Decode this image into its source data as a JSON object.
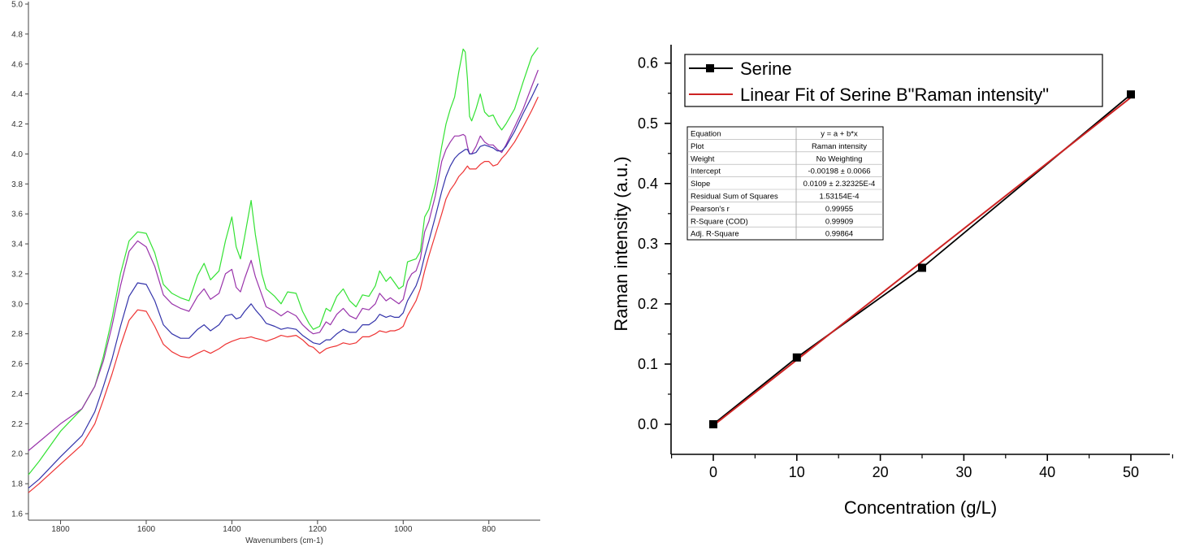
{
  "chart_data": [
    {
      "type": "line",
      "title": "",
      "xlabel": "Wavenumbers (cm-1)",
      "ylabel": "",
      "xlim": [
        1875,
        680
      ],
      "ylim": [
        1.6,
        5.0
      ],
      "x_reversed": true,
      "x_ticks": [
        1800,
        1600,
        1400,
        1200,
        1000,
        800
      ],
      "y_ticks": [
        1.6,
        1.8,
        2.0,
        2.2,
        2.4,
        2.6,
        2.8,
        3.0,
        3.2,
        3.4,
        3.6,
        3.8,
        4.0,
        4.2,
        4.4,
        4.6,
        4.8,
        5.0
      ],
      "x_tick_labels": [
        "1800",
        "1600",
        "1400",
        "1200",
        "1000",
        "800"
      ],
      "y_tick_labels": [
        "1.6",
        "1.8",
        "2.0",
        "2.2",
        "2.4",
        "2.6",
        "2.8",
        "3.0",
        "3.2",
        "3.4",
        "3.6",
        "3.8",
        "4.0",
        "4.2",
        "4.4",
        "4.6",
        "4.8",
        "5.0"
      ],
      "grid": false,
      "series": [
        {
          "color": "#33e233",
          "x": [
            1875,
            1850,
            1800,
            1750,
            1720,
            1700,
            1680,
            1660,
            1640,
            1620,
            1600,
            1580,
            1560,
            1540,
            1520,
            1500,
            1480,
            1465,
            1450,
            1430,
            1415,
            1400,
            1390,
            1380,
            1370,
            1355,
            1345,
            1330,
            1320,
            1300,
            1285,
            1270,
            1250,
            1235,
            1220,
            1210,
            1195,
            1180,
            1170,
            1155,
            1140,
            1125,
            1110,
            1095,
            1080,
            1065,
            1055,
            1040,
            1030,
            1020,
            1010,
            1000,
            990,
            980,
            970,
            960,
            950,
            940,
            925,
            910,
            900,
            890,
            880,
            870,
            860,
            855,
            850,
            845,
            840,
            830,
            820,
            810,
            800,
            790,
            780,
            770,
            760,
            740,
            720,
            700,
            685
          ],
          "y": [
            1.86,
            1.95,
            2.15,
            2.3,
            2.45,
            2.65,
            2.9,
            3.2,
            3.42,
            3.48,
            3.47,
            3.34,
            3.13,
            3.07,
            3.04,
            3.02,
            3.19,
            3.27,
            3.16,
            3.22,
            3.42,
            3.58,
            3.38,
            3.3,
            3.45,
            3.69,
            3.46,
            3.2,
            3.1,
            3.05,
            3.0,
            3.08,
            3.07,
            2.95,
            2.87,
            2.83,
            2.85,
            2.97,
            2.95,
            3.05,
            3.1,
            3.02,
            2.98,
            3.06,
            3.05,
            3.12,
            3.22,
            3.15,
            3.18,
            3.14,
            3.1,
            3.12,
            3.28,
            3.29,
            3.3,
            3.35,
            3.58,
            3.63,
            3.8,
            4.05,
            4.2,
            4.3,
            4.38,
            4.55,
            4.7,
            4.68,
            4.5,
            4.25,
            4.22,
            4.3,
            4.4,
            4.28,
            4.25,
            4.26,
            4.2,
            4.16,
            4.2,
            4.3,
            4.48,
            4.65,
            4.71
          ]
        },
        {
          "color": "#9933aa",
          "x": [
            1875,
            1850,
            1800,
            1750,
            1720,
            1700,
            1680,
            1660,
            1640,
            1620,
            1600,
            1580,
            1560,
            1540,
            1520,
            1500,
            1480,
            1465,
            1450,
            1430,
            1415,
            1400,
            1390,
            1380,
            1370,
            1355,
            1345,
            1330,
            1320,
            1300,
            1285,
            1270,
            1250,
            1235,
            1220,
            1210,
            1195,
            1180,
            1170,
            1155,
            1140,
            1125,
            1110,
            1095,
            1080,
            1065,
            1055,
            1040,
            1030,
            1020,
            1010,
            1000,
            990,
            980,
            970,
            960,
            950,
            940,
            925,
            910,
            900,
            890,
            880,
            870,
            860,
            855,
            850,
            845,
            840,
            830,
            820,
            810,
            800,
            790,
            780,
            770,
            760,
            740,
            720,
            700,
            685
          ],
          "y": [
            2.02,
            2.08,
            2.2,
            2.3,
            2.45,
            2.62,
            2.85,
            3.12,
            3.35,
            3.42,
            3.38,
            3.25,
            3.06,
            3.0,
            2.97,
            2.95,
            3.05,
            3.1,
            3.03,
            3.07,
            3.2,
            3.23,
            3.11,
            3.08,
            3.17,
            3.29,
            3.18,
            3.06,
            2.98,
            2.95,
            2.92,
            2.95,
            2.92,
            2.86,
            2.82,
            2.8,
            2.81,
            2.88,
            2.86,
            2.93,
            2.97,
            2.92,
            2.9,
            2.97,
            2.96,
            3.0,
            3.07,
            3.02,
            3.04,
            3.02,
            3.0,
            3.03,
            3.15,
            3.2,
            3.22,
            3.3,
            3.48,
            3.55,
            3.72,
            3.95,
            4.03,
            4.08,
            4.12,
            4.12,
            4.13,
            4.12,
            4.05,
            4.0,
            4.0,
            4.05,
            4.12,
            4.08,
            4.06,
            4.06,
            4.03,
            4.01,
            4.06,
            4.18,
            4.3,
            4.45,
            4.56
          ]
        },
        {
          "color": "#3333aa",
          "x": [
            1875,
            1850,
            1800,
            1750,
            1720,
            1700,
            1680,
            1660,
            1640,
            1620,
            1600,
            1580,
            1560,
            1540,
            1520,
            1500,
            1480,
            1465,
            1450,
            1430,
            1415,
            1400,
            1390,
            1380,
            1370,
            1355,
            1345,
            1330,
            1320,
            1300,
            1285,
            1270,
            1250,
            1235,
            1220,
            1210,
            1195,
            1180,
            1170,
            1155,
            1140,
            1125,
            1110,
            1095,
            1080,
            1065,
            1055,
            1040,
            1030,
            1020,
            1010,
            1000,
            990,
            980,
            970,
            960,
            950,
            940,
            925,
            910,
            900,
            890,
            880,
            870,
            860,
            855,
            850,
            845,
            840,
            830,
            820,
            810,
            800,
            790,
            780,
            770,
            760,
            740,
            720,
            700,
            685
          ],
          "y": [
            1.77,
            1.83,
            1.98,
            2.12,
            2.28,
            2.45,
            2.63,
            2.85,
            3.05,
            3.14,
            3.13,
            3.02,
            2.86,
            2.8,
            2.77,
            2.77,
            2.83,
            2.86,
            2.82,
            2.86,
            2.92,
            2.93,
            2.9,
            2.91,
            2.95,
            3.0,
            2.96,
            2.91,
            2.87,
            2.85,
            2.83,
            2.84,
            2.83,
            2.79,
            2.76,
            2.74,
            2.73,
            2.76,
            2.76,
            2.8,
            2.83,
            2.81,
            2.81,
            2.86,
            2.86,
            2.89,
            2.93,
            2.91,
            2.92,
            2.91,
            2.91,
            2.94,
            3.02,
            3.07,
            3.12,
            3.2,
            3.32,
            3.42,
            3.58,
            3.75,
            3.85,
            3.92,
            3.97,
            4.0,
            4.02,
            4.03,
            4.03,
            4.0,
            4.0,
            4.01,
            4.05,
            4.06,
            4.05,
            4.04,
            4.02,
            4.02,
            4.05,
            4.15,
            4.27,
            4.38,
            4.47
          ]
        },
        {
          "color": "#ee3333",
          "x": [
            1875,
            1850,
            1800,
            1750,
            1720,
            1700,
            1680,
            1660,
            1640,
            1620,
            1600,
            1580,
            1560,
            1540,
            1520,
            1500,
            1480,
            1465,
            1450,
            1430,
            1415,
            1400,
            1390,
            1380,
            1370,
            1355,
            1345,
            1330,
            1320,
            1300,
            1285,
            1270,
            1250,
            1235,
            1220,
            1210,
            1195,
            1180,
            1170,
            1155,
            1140,
            1125,
            1110,
            1095,
            1080,
            1065,
            1055,
            1040,
            1030,
            1020,
            1010,
            1000,
            990,
            980,
            970,
            960,
            950,
            940,
            925,
            910,
            900,
            890,
            880,
            870,
            860,
            855,
            850,
            845,
            840,
            830,
            820,
            810,
            800,
            790,
            780,
            770,
            760,
            740,
            720,
            700,
            685
          ],
          "y": [
            1.74,
            1.8,
            1.93,
            2.06,
            2.2,
            2.36,
            2.53,
            2.72,
            2.89,
            2.96,
            2.95,
            2.85,
            2.73,
            2.68,
            2.65,
            2.64,
            2.67,
            2.69,
            2.67,
            2.7,
            2.73,
            2.75,
            2.76,
            2.77,
            2.77,
            2.78,
            2.77,
            2.76,
            2.75,
            2.77,
            2.79,
            2.78,
            2.79,
            2.76,
            2.72,
            2.71,
            2.67,
            2.7,
            2.71,
            2.72,
            2.74,
            2.73,
            2.74,
            2.78,
            2.78,
            2.8,
            2.82,
            2.81,
            2.82,
            2.82,
            2.83,
            2.85,
            2.92,
            2.97,
            3.02,
            3.1,
            3.22,
            3.32,
            3.46,
            3.6,
            3.7,
            3.76,
            3.8,
            3.85,
            3.88,
            3.9,
            3.92,
            3.9,
            3.9,
            3.9,
            3.93,
            3.95,
            3.95,
            3.92,
            3.93,
            3.97,
            4.0,
            4.08,
            4.18,
            4.29,
            4.38
          ]
        }
      ]
    },
    {
      "type": "scatter",
      "title": "",
      "xlabel": "Concentration (g/L)",
      "ylabel": "Raman intensity (a.u.)",
      "xlim": [
        -5,
        55
      ],
      "ylim": [
        -0.05,
        0.6
      ],
      "x_ticks": [
        0,
        10,
        20,
        30,
        40,
        50
      ],
      "y_ticks": [
        0.0,
        0.1,
        0.2,
        0.3,
        0.4,
        0.5,
        0.6
      ],
      "x_tick_labels": [
        "0",
        "10",
        "20",
        "30",
        "40",
        "50"
      ],
      "y_tick_labels": [
        "0.0",
        "0.1",
        "0.2",
        "0.3",
        "0.4",
        "0.5",
        "0.6"
      ],
      "grid": false,
      "legend_position": "top-right",
      "series": [
        {
          "name": "Serine",
          "color": "#000000",
          "marker": "square",
          "x": [
            0,
            10,
            25,
            50
          ],
          "y": [
            0.0,
            0.111,
            0.26,
            0.548
          ]
        },
        {
          "name": "Linear Fit of Serine B\"Raman intensity\"",
          "color": "#cc2222",
          "intercept": -0.00198,
          "slope": 0.0109,
          "x": [
            0,
            50
          ],
          "y": [
            -0.00198,
            0.54302
          ]
        }
      ],
      "stats_table": [
        [
          "Equation",
          "y = a + b*x"
        ],
        [
          "Plot",
          "Raman intensity"
        ],
        [
          "Weight",
          "No Weighting"
        ],
        [
          "Intercept",
          "-0.00198 ± 0.0066"
        ],
        [
          "Slope",
          "0.0109 ± 2.32325E-4"
        ],
        [
          "Residual Sum of Squares",
          "1.53154E-4"
        ],
        [
          "Pearson's r",
          "0.99955"
        ],
        [
          "R-Square (COD)",
          "0.99909"
        ],
        [
          "Adj. R-Square",
          "0.99864"
        ]
      ]
    }
  ]
}
